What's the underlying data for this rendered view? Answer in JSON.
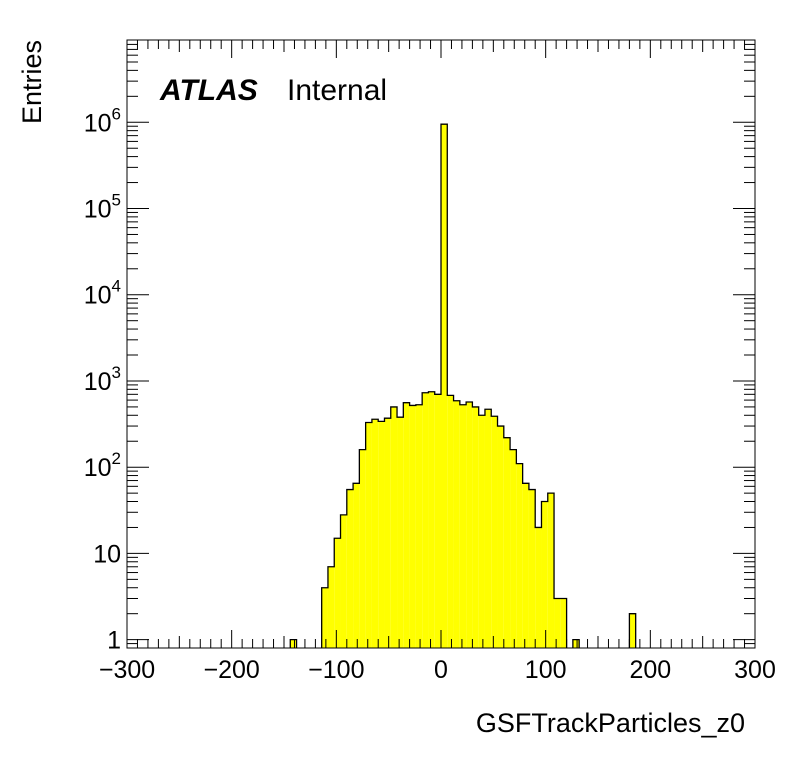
{
  "chart_data": {
    "type": "bar",
    "histogram": true,
    "xlabel": "GSFTrackParticles_z0",
    "ylabel": "Entries",
    "xlim": [
      -300,
      300
    ],
    "ylog": true,
    "ylim": [
      0.8,
      9000000
    ],
    "bin_width": 6,
    "fill_color": "#ffff00",
    "line_color": "#000000",
    "x_ticks": [
      {
        "value": -300,
        "label": "−300"
      },
      {
        "value": -200,
        "label": "−200"
      },
      {
        "value": -100,
        "label": "−100"
      },
      {
        "value": 0,
        "label": "0"
      },
      {
        "value": 100,
        "label": "100"
      },
      {
        "value": 200,
        "label": "200"
      },
      {
        "value": 300,
        "label": "300"
      }
    ],
    "y_ticks": [
      {
        "value": 1,
        "base": "1",
        "exp": ""
      },
      {
        "value": 10,
        "base": "10",
        "exp": ""
      },
      {
        "value": 100,
        "base": "10",
        "exp": "2"
      },
      {
        "value": 1000,
        "base": "10",
        "exp": "3"
      },
      {
        "value": 10000,
        "base": "10",
        "exp": "4"
      },
      {
        "value": 100000,
        "base": "10",
        "exp": "5"
      },
      {
        "value": 1000000,
        "base": "10",
        "exp": "6"
      }
    ],
    "bins": [
      {
        "x0": -144,
        "x1": -138,
        "y": 1
      },
      {
        "x0": -114,
        "x1": -108,
        "y": 4
      },
      {
        "x0": -108,
        "x1": -102,
        "y": 7
      },
      {
        "x0": -102,
        "x1": -96,
        "y": 15
      },
      {
        "x0": -96,
        "x1": -90,
        "y": 28
      },
      {
        "x0": -90,
        "x1": -84,
        "y": 55
      },
      {
        "x0": -84,
        "x1": -78,
        "y": 65
      },
      {
        "x0": -78,
        "x1": -72,
        "y": 160
      },
      {
        "x0": -72,
        "x1": -66,
        "y": 330
      },
      {
        "x0": -66,
        "x1": -60,
        "y": 360
      },
      {
        "x0": -60,
        "x1": -54,
        "y": 340
      },
      {
        "x0": -54,
        "x1": -48,
        "y": 370
      },
      {
        "x0": -48,
        "x1": -42,
        "y": 500
      },
      {
        "x0": -42,
        "x1": -36,
        "y": 380
      },
      {
        "x0": -36,
        "x1": -30,
        "y": 560
      },
      {
        "x0": -30,
        "x1": -24,
        "y": 520
      },
      {
        "x0": -24,
        "x1": -18,
        "y": 530
      },
      {
        "x0": -18,
        "x1": -12,
        "y": 730
      },
      {
        "x0": -12,
        "x1": -6,
        "y": 750
      },
      {
        "x0": -6,
        "x1": 0,
        "y": 700
      },
      {
        "x0": 0,
        "x1": 6,
        "y": 950000
      },
      {
        "x0": 6,
        "x1": 12,
        "y": 680
      },
      {
        "x0": 12,
        "x1": 18,
        "y": 590
      },
      {
        "x0": 18,
        "x1": 24,
        "y": 530
      },
      {
        "x0": 24,
        "x1": 30,
        "y": 570
      },
      {
        "x0": 30,
        "x1": 36,
        "y": 500
      },
      {
        "x0": 36,
        "x1": 42,
        "y": 400
      },
      {
        "x0": 42,
        "x1": 48,
        "y": 470
      },
      {
        "x0": 48,
        "x1": 54,
        "y": 390
      },
      {
        "x0": 54,
        "x1": 60,
        "y": 300
      },
      {
        "x0": 60,
        "x1": 66,
        "y": 220
      },
      {
        "x0": 66,
        "x1": 72,
        "y": 160
      },
      {
        "x0": 72,
        "x1": 78,
        "y": 110
      },
      {
        "x0": 78,
        "x1": 84,
        "y": 65
      },
      {
        "x0": 84,
        "x1": 90,
        "y": 55
      },
      {
        "x0": 90,
        "x1": 96,
        "y": 20
      },
      {
        "x0": 96,
        "x1": 102,
        "y": 40
      },
      {
        "x0": 102,
        "x1": 108,
        "y": 50
      },
      {
        "x0": 108,
        "x1": 114,
        "y": 3
      },
      {
        "x0": 114,
        "x1": 120,
        "y": 3
      },
      {
        "x0": 126,
        "x1": 132,
        "y": 1
      },
      {
        "x0": 180,
        "x1": 186,
        "y": 2
      }
    ]
  },
  "label": {
    "atlas": "ATLAS",
    "internal": "Internal"
  }
}
